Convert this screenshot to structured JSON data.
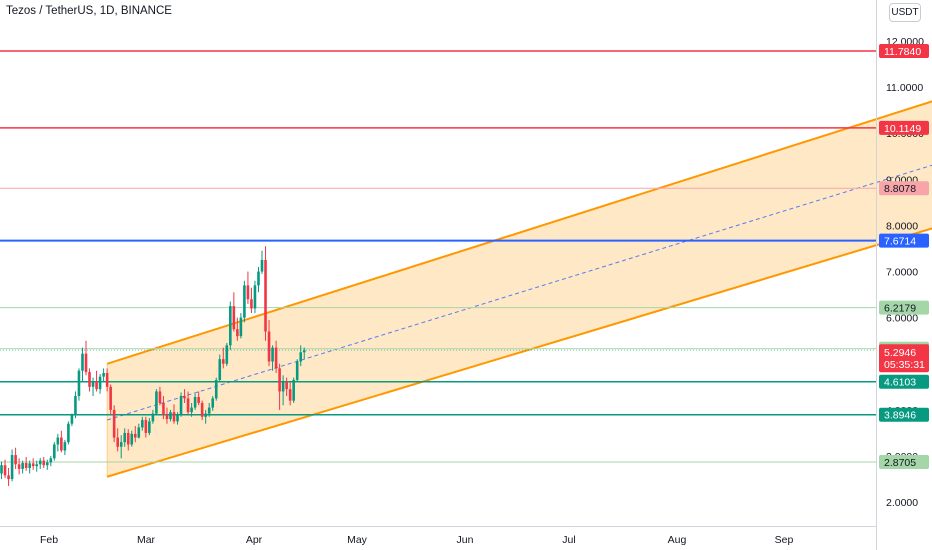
{
  "header": {
    "title": "Tezos / TetherUS, 1D, BINANCE",
    "currency_button": "USDT"
  },
  "chart_data": {
    "type": "candlestick",
    "symbol": "Tezos / TetherUS",
    "interval": "1D",
    "exchange": "BINANCE",
    "x_ticks": [
      "Feb",
      "Mar",
      "Apr",
      "May",
      "Jun",
      "Jul",
      "Aug",
      "Sep"
    ],
    "y_ticks": [
      "2.0000",
      "3.0000",
      "4.0000",
      "5.0000",
      "6.0000",
      "7.0000",
      "8.0000",
      "9.0000",
      "10.0000",
      "11.0000",
      "12.0000"
    ],
    "ylim": [
      1.5,
      12.3
    ],
    "horizontal_levels": [
      {
        "value": 11.784,
        "label": "11.7840",
        "color": "#f23645"
      },
      {
        "value": 10.1149,
        "label": "10.1149",
        "color": "#f23645"
      },
      {
        "value": 8.8078,
        "label": "8.8078",
        "color": "#f7a5a9"
      },
      {
        "value": 7.6714,
        "label": "7.6714",
        "color": "#2962ff"
      },
      {
        "value": 6.2179,
        "label": "6.2179",
        "color": "#a5d6a7"
      },
      {
        "value": 5.326,
        "label": "5.3260",
        "color": "#a5d6a7"
      },
      {
        "value": 4.6103,
        "label": "4.6103",
        "color": "#089981"
      },
      {
        "value": 3.8946,
        "label": "3.8946",
        "color": "#089981"
      },
      {
        "value": 2.8705,
        "label": "2.8705",
        "color": "#a5d6a7"
      }
    ],
    "last_price": {
      "value": 5.2946,
      "label": "5.2946",
      "countdown": "05:35:31",
      "color": "#f23645"
    },
    "channel": {
      "color": "#ff9800",
      "fill": "#ffe0b2",
      "start_index": 31,
      "end_index": 316,
      "upper": [
        5.0,
        11.92
      ],
      "lower": [
        2.55,
        9.1
      ],
      "middle_dashed": [
        3.78,
        10.5
      ]
    },
    "colors": {
      "up": "#089981",
      "down": "#f23645"
    },
    "candles": [
      [
        3.0,
        3.04,
        2.55,
        2.62
      ],
      [
        2.62,
        2.88,
        2.5,
        2.8
      ],
      [
        2.8,
        2.92,
        2.52,
        2.58
      ],
      [
        2.58,
        2.74,
        2.35,
        2.5
      ],
      [
        2.5,
        3.14,
        2.45,
        3.02
      ],
      [
        3.02,
        3.18,
        2.72,
        2.82
      ],
      [
        2.82,
        2.95,
        2.6,
        2.72
      ],
      [
        2.72,
        2.9,
        2.62,
        2.85
      ],
      [
        2.85,
        2.98,
        2.68,
        2.74
      ],
      [
        2.74,
        2.9,
        2.62,
        2.84
      ],
      [
        2.84,
        2.95,
        2.7,
        2.78
      ],
      [
        2.78,
        2.9,
        2.66,
        2.82
      ],
      [
        2.82,
        2.96,
        2.72,
        2.9
      ],
      [
        2.9,
        2.98,
        2.74,
        2.8
      ],
      [
        2.8,
        2.92,
        2.7,
        2.86
      ],
      [
        2.86,
        3.0,
        2.78,
        2.95
      ],
      [
        2.95,
        3.3,
        2.9,
        3.25
      ],
      [
        3.25,
        3.48,
        3.1,
        3.4
      ],
      [
        3.4,
        3.55,
        3.08,
        3.12
      ],
      [
        3.12,
        3.35,
        3.02,
        3.3
      ],
      [
        3.3,
        3.75,
        3.25,
        3.7
      ],
      [
        3.7,
        3.92,
        3.65,
        3.88
      ],
      [
        3.88,
        4.4,
        3.82,
        4.3
      ],
      [
        4.3,
        4.9,
        4.2,
        4.85
      ],
      [
        4.85,
        5.35,
        4.6,
        5.22
      ],
      [
        5.22,
        5.5,
        4.75,
        4.82
      ],
      [
        4.82,
        4.9,
        4.4,
        4.5
      ],
      [
        4.5,
        4.7,
        4.3,
        4.62
      ],
      [
        4.62,
        4.85,
        4.4,
        4.45
      ],
      [
        4.45,
        4.78,
        4.35,
        4.72
      ],
      [
        4.72,
        4.9,
        4.6,
        4.8
      ],
      [
        4.8,
        4.9,
        4.4,
        4.5
      ],
      [
        4.5,
        4.55,
        3.9,
        4.0
      ],
      [
        4.0,
        4.1,
        3.3,
        3.4
      ],
      [
        3.4,
        3.6,
        3.1,
        3.2
      ],
      [
        3.2,
        3.45,
        2.95,
        3.3
      ],
      [
        3.3,
        3.6,
        3.2,
        3.5
      ],
      [
        3.5,
        3.58,
        3.12,
        3.25
      ],
      [
        3.25,
        3.55,
        3.2,
        3.48
      ],
      [
        3.48,
        3.65,
        3.3,
        3.4
      ],
      [
        3.4,
        3.7,
        3.38,
        3.62
      ],
      [
        3.62,
        3.85,
        3.55,
        3.78
      ],
      [
        3.78,
        3.85,
        3.4,
        3.5
      ],
      [
        3.5,
        3.82,
        3.45,
        3.75
      ],
      [
        3.75,
        4.0,
        3.7,
        3.92
      ],
      [
        3.92,
        4.45,
        3.88,
        4.4
      ],
      [
        4.4,
        4.5,
        4.1,
        4.15
      ],
      [
        4.15,
        4.3,
        3.8,
        3.9
      ],
      [
        3.9,
        4.05,
        3.7,
        3.8
      ],
      [
        3.8,
        4.0,
        3.75,
        3.95
      ],
      [
        3.95,
        4.12,
        3.7,
        3.75
      ],
      [
        3.75,
        3.95,
        3.68,
        3.9
      ],
      [
        3.9,
        4.38,
        3.85,
        4.3
      ],
      [
        4.3,
        4.45,
        4.15,
        4.25
      ],
      [
        4.25,
        4.4,
        3.9,
        3.95
      ],
      [
        3.95,
        4.15,
        3.85,
        4.05
      ],
      [
        4.05,
        4.35,
        4.0,
        4.28
      ],
      [
        4.28,
        4.4,
        4.1,
        4.15
      ],
      [
        4.15,
        4.2,
        3.78,
        3.85
      ],
      [
        3.85,
        4.0,
        3.7,
        3.92
      ],
      [
        3.92,
        4.15,
        3.85,
        4.05
      ],
      [
        4.05,
        4.3,
        3.98,
        4.25
      ],
      [
        4.25,
        4.7,
        4.2,
        4.65
      ],
      [
        4.65,
        5.2,
        4.6,
        5.1
      ],
      [
        5.1,
        5.35,
        4.9,
        5.0
      ],
      [
        5.0,
        5.45,
        4.95,
        5.4
      ],
      [
        5.4,
        6.35,
        5.3,
        6.25
      ],
      [
        6.25,
        6.55,
        5.7,
        5.75
      ],
      [
        5.75,
        6.0,
        5.5,
        5.6
      ],
      [
        5.6,
        6.1,
        5.55,
        6.0
      ],
      [
        6.0,
        6.8,
        5.9,
        6.7
      ],
      [
        6.7,
        7.0,
        6.3,
        6.4
      ],
      [
        6.4,
        6.65,
        6.1,
        6.2
      ],
      [
        6.2,
        6.8,
        6.1,
        6.7
      ],
      [
        6.7,
        7.1,
        6.55,
        7.0
      ],
      [
        7.0,
        7.45,
        6.95,
        7.25
      ],
      [
        7.25,
        7.55,
        5.5,
        5.7
      ],
      [
        5.7,
        5.95,
        4.95,
        5.05
      ],
      [
        5.05,
        5.4,
        4.85,
        5.35
      ],
      [
        5.35,
        5.5,
        4.8,
        4.9
      ],
      [
        4.9,
        5.0,
        4.0,
        4.4
      ],
      [
        4.4,
        4.75,
        4.1,
        4.6
      ],
      [
        4.6,
        4.7,
        4.3,
        4.45
      ],
      [
        4.45,
        4.6,
        4.1,
        4.2
      ],
      [
        4.2,
        4.7,
        4.15,
        4.65
      ],
      [
        4.65,
        5.1,
        4.6,
        5.05
      ],
      [
        5.05,
        5.4,
        4.95,
        5.25
      ],
      [
        5.25,
        5.35,
        5.1,
        5.2946
      ]
    ]
  }
}
